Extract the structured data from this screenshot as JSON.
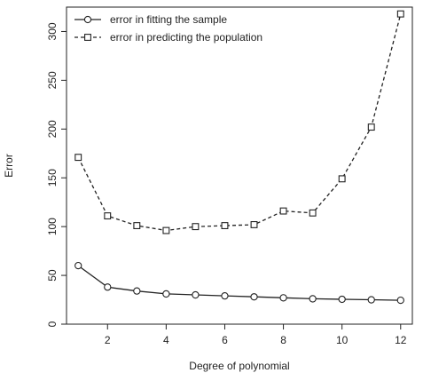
{
  "chart_data": {
    "type": "line",
    "xlabel": "Degree of polynomial",
    "ylabel": "Error",
    "xlim": [
      0.6,
      12.4
    ],
    "ylim": [
      0,
      325
    ],
    "x_ticks": [
      2,
      4,
      6,
      8,
      10,
      12
    ],
    "y_ticks": [
      0,
      50,
      100,
      150,
      200,
      250,
      300
    ],
    "grid": false,
    "legend_position": "top-left",
    "x": [
      1,
      2,
      3,
      4,
      5,
      6,
      7,
      8,
      9,
      10,
      11,
      12
    ],
    "series": [
      {
        "name": "error in fitting the sample",
        "values": [
          60,
          38,
          34,
          31,
          30,
          29,
          28,
          27,
          26,
          25.5,
          25,
          24.5
        ],
        "line_style": "solid",
        "marker": "circle",
        "color": "#222222"
      },
      {
        "name": "error in predicting the population",
        "values": [
          171,
          111,
          101,
          96,
          100,
          101,
          102,
          116,
          114,
          149,
          202,
          318
        ],
        "line_style": "dashed",
        "marker": "square",
        "color": "#222222"
      }
    ]
  }
}
